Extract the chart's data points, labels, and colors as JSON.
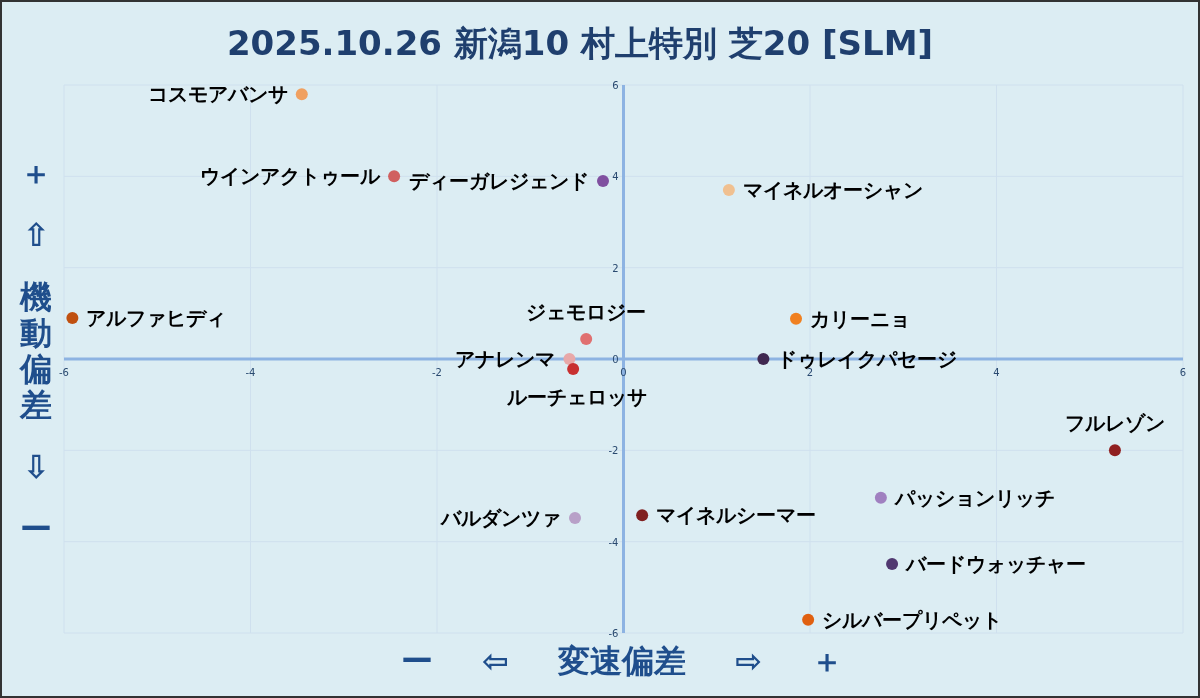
{
  "chart_data": {
    "type": "scatter",
    "title": "2025.10.26 新潟10 村上特別 芝20 [SLM]",
    "xlabel": "ー ⇦ 変速偏差 ⇨ ＋",
    "ylabel": "＋⇧機動偏差⇩ー",
    "xlim": [
      -6,
      6
    ],
    "ylim": [
      -6,
      6
    ],
    "xticks": [
      -6,
      -4,
      -2,
      0,
      2,
      4,
      6
    ],
    "yticks": [
      -6,
      -4,
      -2,
      0,
      2,
      4,
      6
    ],
    "grid": true,
    "marker": "circle",
    "series": [
      {
        "name": "コスモアバンサ",
        "color": "#f0a060",
        "x": [
          -3.45
        ],
        "values": [
          5.8
        ]
      },
      {
        "name": "ウインアクトゥール",
        "color": "#d06060",
        "x": [
          -2.46
        ],
        "values": [
          4.0
        ]
      },
      {
        "name": "ディーガレジェンド",
        "color": "#8050a0",
        "x": [
          -0.22
        ],
        "values": [
          3.9
        ]
      },
      {
        "name": "マイネルオーシャン",
        "color": "#f0c090",
        "x": [
          1.13
        ],
        "values": [
          3.7
        ]
      },
      {
        "name": "アルファヒディ",
        "color": "#c05010",
        "x": [
          -5.91
        ],
        "values": [
          0.9
        ]
      },
      {
        "name": "ジェモロジー",
        "color": "#e07070",
        "x": [
          -0.4
        ],
        "values": [
          0.44
        ]
      },
      {
        "name": "アナレンマ",
        "color": "#e8a8a8",
        "x": [
          -0.58
        ],
        "values": [
          0.0
        ]
      },
      {
        "name": "ルーチェロッサ",
        "color": "#c83030",
        "x": [
          -0.54
        ],
        "values": [
          -0.22
        ]
      },
      {
        "name": "カリーニョ",
        "color": "#f08020",
        "x": [
          1.85
        ],
        "values": [
          0.88
        ]
      },
      {
        "name": "ドゥレイクパセージ",
        "color": "#402850",
        "x": [
          1.5
        ],
        "values": [
          0.0
        ]
      },
      {
        "name": "フルレゾン",
        "color": "#902020",
        "x": [
          5.27
        ],
        "values": [
          -2.0
        ]
      },
      {
        "name": "パッションリッチ",
        "color": "#a080c0",
        "x": [
          2.76
        ],
        "values": [
          -3.04
        ]
      },
      {
        "name": "マイネルシーマー",
        "color": "#802020",
        "x": [
          0.2
        ],
        "values": [
          -3.42
        ]
      },
      {
        "name": "バルダンツァ",
        "color": "#b8a0c8",
        "x": [
          -0.52
        ],
        "values": [
          -3.48
        ]
      },
      {
        "name": "バードウォッチャー",
        "color": "#503870",
        "x": [
          2.88
        ],
        "values": [
          -4.49
        ]
      },
      {
        "name": "シルバープリペット",
        "color": "#e06010",
        "x": [
          1.98
        ],
        "values": [
          -5.71
        ]
      }
    ]
  }
}
